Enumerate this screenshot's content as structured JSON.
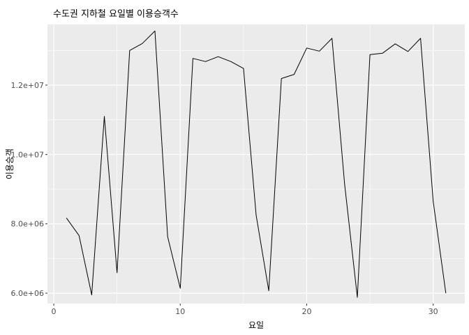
{
  "chart_data": {
    "type": "line",
    "title": "수도권 지하철 요일별 이용승객수",
    "xlabel": "요일",
    "ylabel": "이용승객",
    "xlim": [
      -0.5,
      32.5
    ],
    "ylim": [
      5700000,
      13750000
    ],
    "x_ticks": [
      0,
      10,
      20,
      30
    ],
    "x_tick_labels": [
      "0",
      "10",
      "20",
      "30"
    ],
    "x_minor_ticks": [
      5,
      15,
      25
    ],
    "y_ticks": [
      6000000,
      8000000,
      10000000,
      12000000
    ],
    "y_tick_labels": [
      "6.0e+06",
      "8.0e+06",
      "1.0e+07",
      "1.2e+07"
    ],
    "y_minor_ticks": [
      7000000,
      9000000,
      11000000,
      13000000
    ],
    "grid": true,
    "colors": {
      "panel": "#ebebeb",
      "grid": "#ffffff",
      "line": "#000000"
    },
    "series": [
      {
        "x": [
          1,
          2,
          3,
          4,
          5,
          6,
          7,
          8,
          9,
          10,
          11,
          12,
          13,
          14,
          15,
          16,
          17,
          18,
          19,
          20,
          21,
          22,
          23,
          24,
          25,
          26,
          27,
          28,
          29,
          30,
          31
        ],
        "values": [
          8170000,
          7660000,
          5950000,
          11100000,
          6590000,
          13000000,
          13200000,
          13560000,
          7630000,
          6140000,
          12770000,
          12680000,
          12820000,
          12680000,
          12480000,
          8250000,
          6070000,
          12190000,
          12310000,
          13070000,
          12980000,
          13350000,
          9140000,
          5880000,
          12880000,
          12920000,
          13190000,
          12970000,
          13350000,
          8650000,
          6000000
        ]
      }
    ]
  }
}
